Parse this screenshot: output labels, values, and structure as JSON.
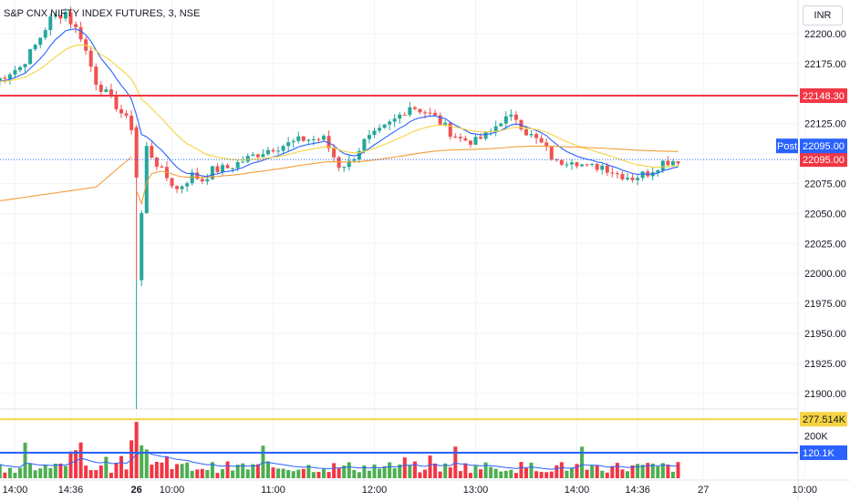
{
  "title": "S&P CNX NIFTY INDEX FUTURES, 3, NSE",
  "currency_label": "INR",
  "colors": {
    "up": "#26a69a",
    "down": "#ef5350",
    "vol_up": "#4caf50",
    "vol_down": "#f23645",
    "ema_fast": "#2962ff",
    "ema_slow": "#f5d442",
    "vwap": "#f29d38",
    "line_red": "#f23645",
    "line_yellow": "#f5d442",
    "line_blue": "#2962ff"
  },
  "chart_data": {
    "type": "candlestick",
    "y_ticks": [
      "22200.00",
      "22175.00",
      "22150.00",
      "22125.00",
      "22100.00",
      "22075.00",
      "22050.00",
      "22025.00",
      "22000.00",
      "21975.00",
      "21950.00",
      "21925.00",
      "21900.00"
    ],
    "ylim": [
      21890,
      22222
    ],
    "x_tick_labels": [
      {
        "label": "14:00",
        "bar": -11
      },
      {
        "label": "14:36",
        "bar": 0
      },
      {
        "label": "26",
        "bar": 13,
        "bold": true
      },
      {
        "label": "10:00",
        "bar": 20
      },
      {
        "label": "11:00",
        "bar": 40
      },
      {
        "label": "12:00",
        "bar": 60
      },
      {
        "label": "13:00",
        "bar": 80
      },
      {
        "label": "14:00",
        "bar": 100
      },
      {
        "label": "14:36",
        "bar": 112
      },
      {
        "label": "27",
        "bar": 125
      },
      {
        "label": "10:00",
        "bar": 145
      }
    ],
    "bar_count": 126,
    "price_start": 22160,
    "price_path": [
      [
        -15,
        22160
      ],
      [
        -12,
        22168
      ],
      [
        -10,
        22172
      ],
      [
        -7,
        22190
      ],
      [
        -4,
        22212
      ],
      [
        -1,
        22218
      ],
      [
        0,
        22210
      ],
      [
        2,
        22198
      ],
      [
        5,
        22160
      ],
      [
        9,
        22140
      ],
      [
        12,
        22122
      ],
      [
        13,
        21995
      ],
      [
        15,
        22105
      ],
      [
        18,
        22085
      ],
      [
        21,
        22070
      ],
      [
        24,
        22082
      ],
      [
        26,
        22078
      ],
      [
        28,
        22086
      ],
      [
        31,
        22088
      ],
      [
        34,
        22094
      ],
      [
        37,
        22100
      ],
      [
        40,
        22105
      ],
      [
        43,
        22108
      ],
      [
        46,
        22112
      ],
      [
        50,
        22112
      ],
      [
        53,
        22090
      ],
      [
        55,
        22092
      ],
      [
        58,
        22110
      ],
      [
        61,
        22118
      ],
      [
        64,
        22128
      ],
      [
        67,
        22140
      ],
      [
        70,
        22135
      ],
      [
        72,
        22130
      ],
      [
        75,
        22118
      ],
      [
        77,
        22112
      ],
      [
        80,
        22110
      ],
      [
        83,
        22118
      ],
      [
        85,
        22128
      ],
      [
        88,
        22130
      ],
      [
        90,
        22118
      ],
      [
        93,
        22108
      ],
      [
        96,
        22092
      ],
      [
        99,
        22096
      ],
      [
        102,
        22088
      ],
      [
        105,
        22090
      ],
      [
        108,
        22083
      ],
      [
        111,
        22080
      ],
      [
        114,
        22084
      ],
      [
        117,
        22093
      ],
      [
        120,
        22095
      ]
    ],
    "volume_ticks": [
      "200K"
    ],
    "volume_max": 300000,
    "horizontal_lines": [
      {
        "name": "resistance",
        "price": 22148.3,
        "label": "22148.30",
        "color": "#f23645"
      },
      {
        "name": "last-price",
        "price": 22095.0,
        "label": "22095.00",
        "color": "#f23645",
        "dotted": true
      }
    ],
    "post_label": "Post",
    "post_price": "22095.00",
    "volume_lines": [
      {
        "name": "volume-high",
        "value": 277514,
        "label": "277.514K",
        "color": "#f5d442"
      },
      {
        "name": "volume-average",
        "value": 120100,
        "label": "120.1K",
        "color": "#2962ff"
      }
    ]
  }
}
